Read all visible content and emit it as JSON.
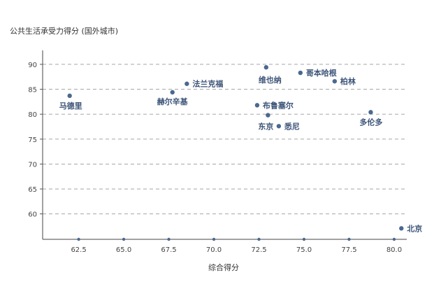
{
  "chart_data": {
    "type": "scatter",
    "title": "",
    "xlabel": "综合得分",
    "ylabel": "公共生活承受力得分 (国外城市)",
    "xlim": [
      60.5,
      80.7
    ],
    "ylim": [
      54.9,
      92.8
    ],
    "xticks": [
      "62.5",
      "65.0",
      "67.5",
      "70.0",
      "72.5",
      "75.0",
      "77.5",
      "80.0"
    ],
    "xtick_values": [
      62.5,
      65.0,
      67.5,
      70.0,
      72.5,
      75.0,
      77.5,
      80.0
    ],
    "yticks": [
      "60",
      "65",
      "70",
      "75",
      "80",
      "85",
      "90"
    ],
    "ytick_values": [
      60,
      65,
      70,
      75,
      80,
      85,
      90
    ],
    "grid": "horizontal dashed",
    "point_color": "#4a6890",
    "points": [
      {
        "label": "马德里",
        "x": 62.0,
        "y": 83.7
      },
      {
        "label": "赫尔辛基",
        "x": 67.7,
        "y": 84.4
      },
      {
        "label": "法兰克福",
        "x": 68.5,
        "y": 86.1
      },
      {
        "label": "维也纳",
        "x": 72.9,
        "y": 89.4
      },
      {
        "label": "哥本哈根",
        "x": 74.8,
        "y": 88.3
      },
      {
        "label": "柏林",
        "x": 76.7,
        "y": 86.6
      },
      {
        "label": "布鲁塞尔",
        "x": 72.4,
        "y": 81.8
      },
      {
        "label": "东京",
        "x": 73.0,
        "y": 79.8
      },
      {
        "label": "悉尼",
        "x": 73.6,
        "y": 77.6
      },
      {
        "label": "多伦多",
        "x": 78.7,
        "y": 80.4
      },
      {
        "label": "北京",
        "x": 80.4,
        "y": 57.1
      }
    ]
  }
}
